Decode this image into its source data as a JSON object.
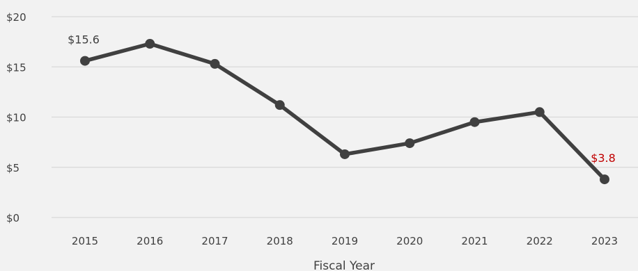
{
  "chart_data": {
    "type": "line",
    "xlabel": "Fiscal Year",
    "ylabel": "",
    "ylim": [
      0,
      20
    ],
    "yticks": [
      "$0",
      "$5",
      "$10",
      "$15",
      "$20"
    ],
    "categories": [
      "2015",
      "2016",
      "2017",
      "2018",
      "2019",
      "2020",
      "2021",
      "2022",
      "2023"
    ],
    "series": [
      {
        "values": [
          15.6,
          17.3,
          15.3,
          11.2,
          6.3,
          7.4,
          9.5,
          10.5,
          3.8
        ],
        "color": "#404040"
      }
    ],
    "data_labels": [
      {
        "index": 0,
        "text": "$15.6",
        "color": "#404040"
      },
      {
        "index": 8,
        "text": "$3.8",
        "color": "#c00000"
      }
    ],
    "grid": true,
    "legend": "none"
  }
}
